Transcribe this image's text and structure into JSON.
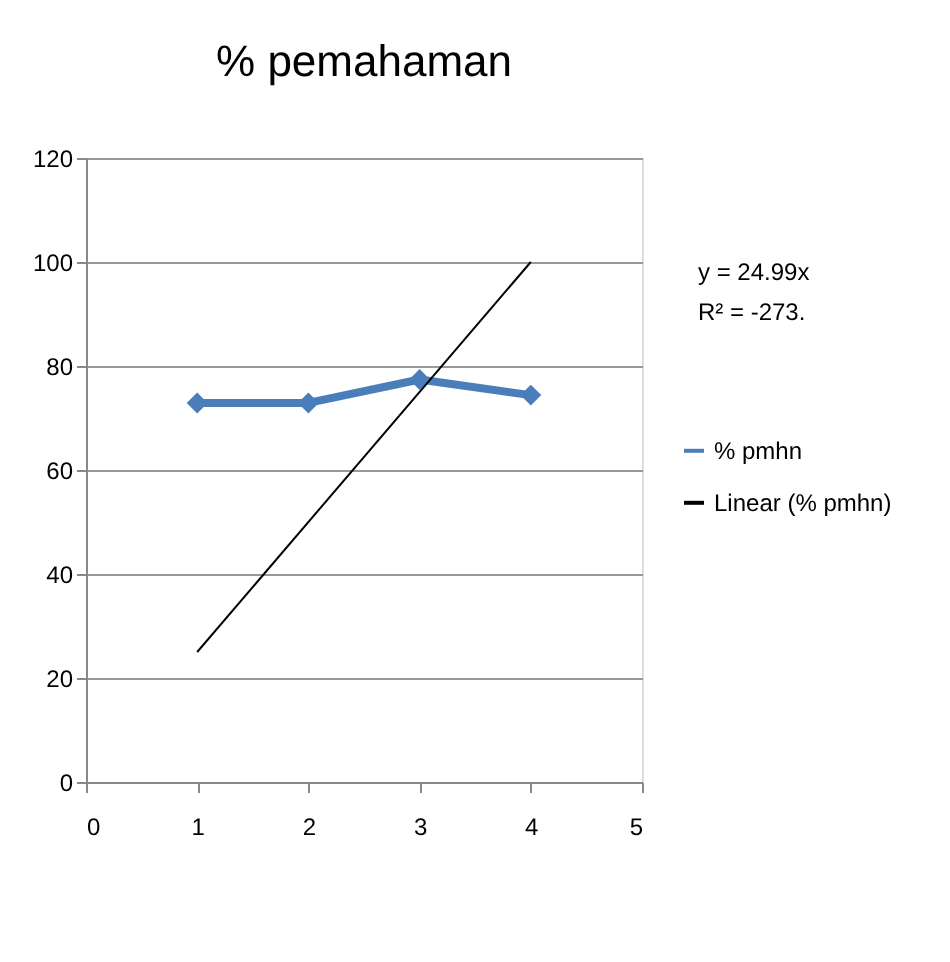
{
  "chart_data": {
    "type": "line",
    "title": "% pemahaman",
    "xlim": [
      0,
      5
    ],
    "xticks": [
      0,
      1,
      2,
      3,
      4,
      5
    ],
    "ylim": [
      0,
      120
    ],
    "yticks": [
      0,
      20,
      40,
      60,
      80,
      100,
      120
    ],
    "grid": "y",
    "legend": "right",
    "series": [
      {
        "name": "% pmhn",
        "color": "#4a7ebb",
        "x": [
          1,
          2,
          3,
          4
        ],
        "values": [
          72.9,
          72.9,
          77.4,
          74.4
        ],
        "marker": "diamond",
        "line_style": "solid"
      },
      {
        "name": "Linear (% pmhn)",
        "color": "#000000",
        "type": "line",
        "x": [
          1,
          4
        ],
        "values": [
          25,
          100
        ],
        "marker": "none",
        "line_style": "solid"
      }
    ],
    "annotations": [
      "y = 24.99x\nR² = -273."
    ]
  }
}
